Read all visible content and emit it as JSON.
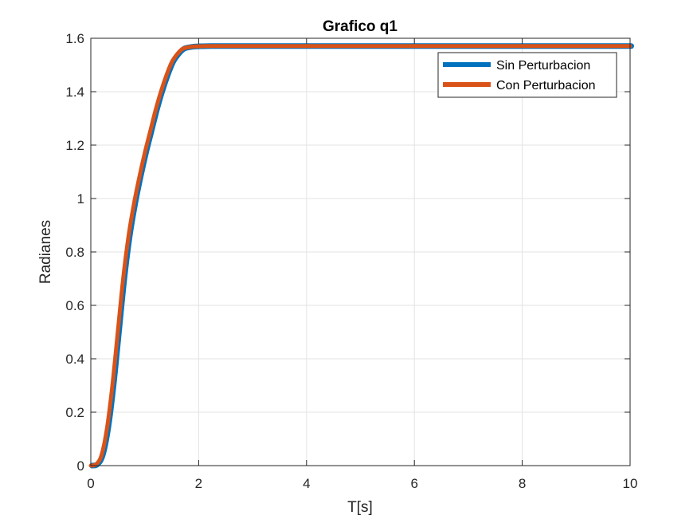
{
  "chart_data": {
    "type": "line",
    "title": "Grafico q1",
    "xlabel": "T[s]",
    "ylabel": "Radianes",
    "xlim": [
      0,
      10
    ],
    "ylim": [
      0,
      1.6
    ],
    "xticks": [
      "0",
      "2",
      "4",
      "6",
      "8",
      "10"
    ],
    "yticks": [
      "0",
      "0.2",
      "0.4",
      "0.6",
      "0.8",
      "1",
      "1.2",
      "1.4",
      "1.6"
    ],
    "grid": true,
    "legend_position": "top-right",
    "series": [
      {
        "name": "Sin Perturbacion",
        "color": "#0072BD",
        "x": [
          0,
          0.1,
          0.2,
          0.3,
          0.4,
          0.5,
          0.6,
          0.7,
          0.8,
          0.9,
          1.0,
          1.1,
          1.2,
          1.3,
          1.4,
          1.5,
          1.6,
          1.7,
          1.8,
          1.9,
          2.0,
          2.2,
          2.5,
          3,
          4,
          5,
          6,
          7,
          8,
          9,
          10
        ],
        "y": [
          0,
          0.005,
          0.04,
          0.14,
          0.3,
          0.5,
          0.7,
          0.86,
          0.98,
          1.08,
          1.17,
          1.25,
          1.33,
          1.4,
          1.46,
          1.51,
          1.54,
          1.56,
          1.566,
          1.569,
          1.57,
          1.5708,
          1.5708,
          1.5708,
          1.5708,
          1.5708,
          1.5708,
          1.5708,
          1.5708,
          1.5708,
          1.5708
        ]
      },
      {
        "name": "Con Perturbacion",
        "color": "#D95319",
        "x": [
          0,
          0.1,
          0.2,
          0.3,
          0.4,
          0.5,
          0.6,
          0.7,
          0.8,
          0.9,
          1.0,
          1.1,
          1.2,
          1.3,
          1.4,
          1.5,
          1.6,
          1.7,
          1.8,
          1.9,
          2.0,
          2.2,
          2.5,
          3,
          4,
          5,
          6,
          7,
          8,
          9,
          10
        ],
        "y": [
          0,
          0.005,
          0.04,
          0.14,
          0.3,
          0.5,
          0.7,
          0.86,
          0.98,
          1.08,
          1.17,
          1.25,
          1.33,
          1.4,
          1.46,
          1.51,
          1.54,
          1.56,
          1.566,
          1.569,
          1.57,
          1.5708,
          1.5708,
          1.5708,
          1.5708,
          1.5708,
          1.5708,
          1.5708,
          1.5708,
          1.5708,
          1.5708
        ]
      }
    ]
  }
}
